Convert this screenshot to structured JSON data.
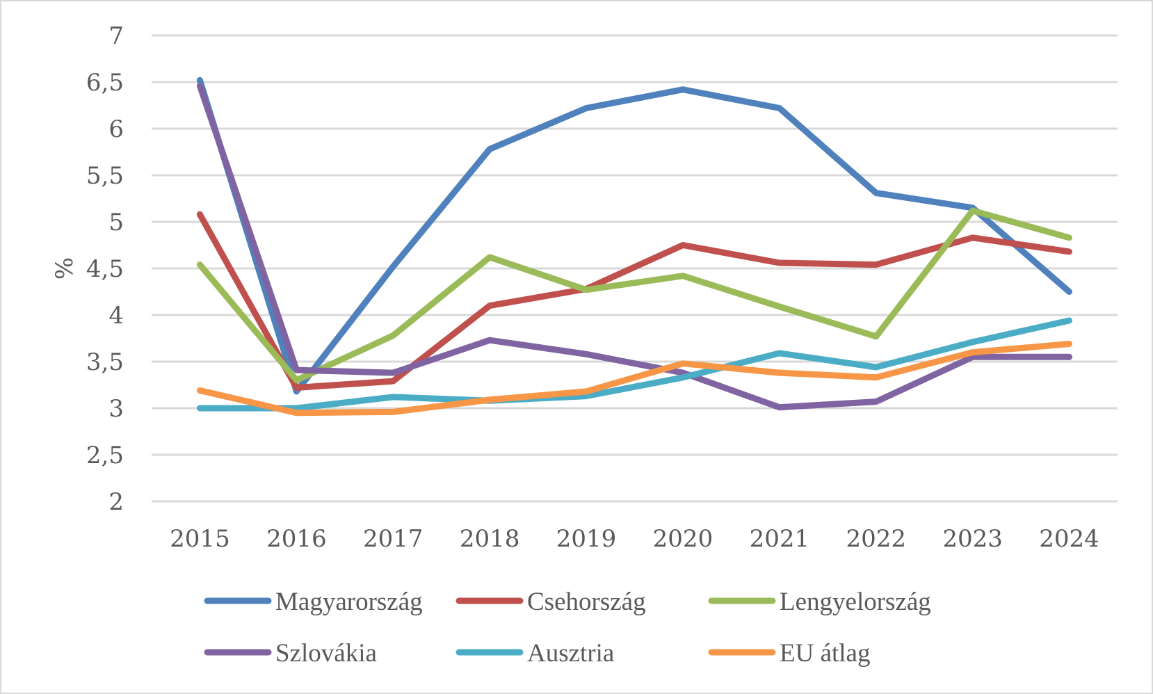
{
  "chart_data": {
    "type": "line",
    "title": "",
    "xlabel": "",
    "ylabel": "%",
    "ylim": [
      2,
      7
    ],
    "yticks": [
      2,
      2.5,
      3,
      3.5,
      4,
      4.5,
      5,
      5.5,
      6,
      6.5,
      7
    ],
    "ytick_labels": [
      "2",
      "2,5",
      "3",
      "3,5",
      "4",
      "4,5",
      "5",
      "5,5",
      "6",
      "6,5",
      "7"
    ],
    "grid": true,
    "legend_position": "bottom",
    "categories": [
      "2015",
      "2016",
      "2017",
      "2018",
      "2019",
      "2020",
      "2021",
      "2022",
      "2023",
      "2024"
    ],
    "series": [
      {
        "name": "Magyarország",
        "color": "#4f81bd",
        "values": [
          6.52,
          3.18,
          4.52,
          5.78,
          6.22,
          6.42,
          6.22,
          5.31,
          5.15,
          4.25
        ]
      },
      {
        "name": "Csehország",
        "color": "#c0504d",
        "values": [
          5.08,
          3.22,
          3.29,
          4.1,
          4.28,
          4.75,
          4.56,
          4.54,
          4.83,
          4.68
        ]
      },
      {
        "name": "Lengyelország",
        "color": "#9bbb59",
        "values": [
          4.54,
          3.3,
          3.78,
          4.62,
          4.27,
          4.42,
          4.09,
          3.77,
          5.12,
          4.83
        ]
      },
      {
        "name": "Szlovákia",
        "color": "#8064a2",
        "values": [
          6.46,
          3.41,
          3.38,
          3.73,
          3.58,
          3.38,
          3.01,
          3.07,
          3.55,
          3.55
        ]
      },
      {
        "name": "Ausztria",
        "color": "#4bacc6",
        "values": [
          3.0,
          3.0,
          3.12,
          3.08,
          3.13,
          3.33,
          3.59,
          3.44,
          3.71,
          3.94
        ]
      },
      {
        "name": "EU átlag",
        "color": "#f79646",
        "values": [
          3.19,
          2.95,
          2.96,
          3.09,
          3.18,
          3.48,
          3.38,
          3.33,
          3.6,
          3.69
        ]
      }
    ]
  },
  "colors": {
    "gridline": "#d9d9d9",
    "text": "#595959",
    "frame": "#d9d9d9"
  }
}
